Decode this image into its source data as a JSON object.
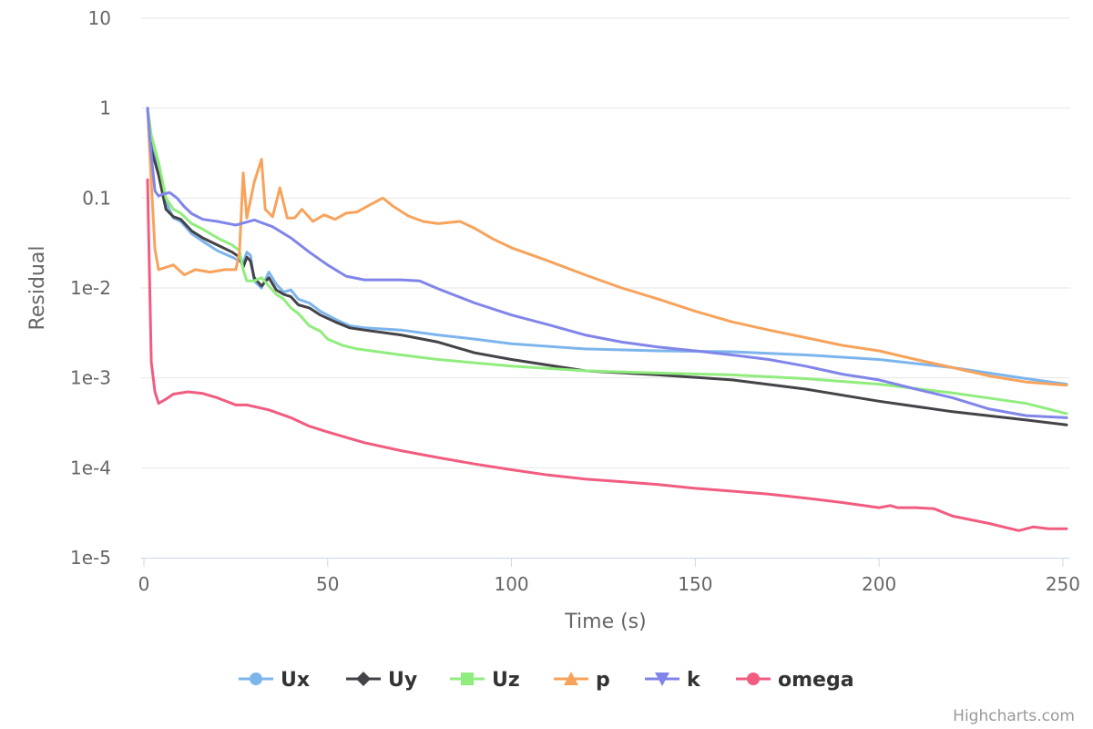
{
  "chart_data": {
    "type": "line",
    "title": "",
    "xlabel": "Time (s)",
    "ylabel": "Residual",
    "xlim": [
      0,
      252
    ],
    "ylim": [
      1e-05,
      10
    ],
    "y_scale": "log",
    "x_ticks": [
      0,
      50,
      100,
      150,
      200,
      250
    ],
    "x_tick_labels": [
      "0",
      "50",
      "100",
      "150",
      "200",
      "250"
    ],
    "y_ticks": [
      1e-05,
      0.0001,
      0.001,
      0.01,
      0.1,
      1,
      10
    ],
    "y_tick_labels": [
      "1e-5",
      "1e-4",
      "1e-3",
      "1e-2",
      "0.1",
      "1",
      "10"
    ],
    "grid": true,
    "legend_position": "bottom-center",
    "credits": "Highcharts.com",
    "series": [
      {
        "name": "Ux",
        "color": "#7cb5ec",
        "marker": "circle",
        "points": [
          [
            1,
            1
          ],
          [
            2,
            0.4
          ],
          [
            4,
            0.2
          ],
          [
            6,
            0.09
          ],
          [
            8,
            0.06
          ],
          [
            10,
            0.055
          ],
          [
            13,
            0.04
          ],
          [
            16,
            0.033
          ],
          [
            20,
            0.026
          ],
          [
            24,
            0.022
          ],
          [
            26,
            0.02
          ],
          [
            27,
            0.019
          ],
          [
            28,
            0.025
          ],
          [
            29,
            0.023
          ],
          [
            30,
            0.012
          ],
          [
            32,
            0.01
          ],
          [
            34,
            0.015
          ],
          [
            36,
            0.011
          ],
          [
            38,
            0.009
          ],
          [
            40,
            0.0095
          ],
          [
            42,
            0.0075
          ],
          [
            45,
            0.0068
          ],
          [
            48,
            0.0055
          ],
          [
            52,
            0.0045
          ],
          [
            56,
            0.0038
          ],
          [
            60,
            0.0036
          ],
          [
            70,
            0.0034
          ],
          [
            80,
            0.003
          ],
          [
            90,
            0.0027
          ],
          [
            100,
            0.0024
          ],
          [
            120,
            0.0021
          ],
          [
            140,
            0.002
          ],
          [
            160,
            0.00195
          ],
          [
            180,
            0.0018
          ],
          [
            200,
            0.0016
          ],
          [
            220,
            0.0013
          ],
          [
            240,
            0.00098
          ],
          [
            251,
            0.00085
          ]
        ]
      },
      {
        "name": "Uy",
        "color": "#434348",
        "marker": "diamond",
        "points": [
          [
            1,
            1
          ],
          [
            2,
            0.35
          ],
          [
            4,
            0.18
          ],
          [
            6,
            0.075
          ],
          [
            8,
            0.062
          ],
          [
            10,
            0.058
          ],
          [
            13,
            0.043
          ],
          [
            16,
            0.036
          ],
          [
            20,
            0.03
          ],
          [
            24,
            0.025
          ],
          [
            26,
            0.022
          ],
          [
            27,
            0.017
          ],
          [
            28,
            0.022
          ],
          [
            29,
            0.02
          ],
          [
            30,
            0.013
          ],
          [
            32,
            0.0105
          ],
          [
            34,
            0.013
          ],
          [
            36,
            0.0095
          ],
          [
            38,
            0.0085
          ],
          [
            40,
            0.008
          ],
          [
            42,
            0.0065
          ],
          [
            45,
            0.006
          ],
          [
            48,
            0.005
          ],
          [
            52,
            0.0042
          ],
          [
            56,
            0.0036
          ],
          [
            60,
            0.0034
          ],
          [
            70,
            0.003
          ],
          [
            80,
            0.0025
          ],
          [
            90,
            0.0019
          ],
          [
            100,
            0.0016
          ],
          [
            120,
            0.0012
          ],
          [
            140,
            0.00108
          ],
          [
            160,
            0.00095
          ],
          [
            180,
            0.00075
          ],
          [
            200,
            0.00055
          ],
          [
            220,
            0.00042
          ],
          [
            240,
            0.00034
          ],
          [
            251,
            0.0003
          ]
        ]
      },
      {
        "name": "Uz",
        "color": "#90ed7d",
        "marker": "square",
        "points": [
          [
            1,
            1
          ],
          [
            2,
            0.5
          ],
          [
            4,
            0.25
          ],
          [
            6,
            0.1
          ],
          [
            8,
            0.075
          ],
          [
            10,
            0.068
          ],
          [
            13,
            0.052
          ],
          [
            16,
            0.045
          ],
          [
            20,
            0.036
          ],
          [
            24,
            0.03
          ],
          [
            26,
            0.026
          ],
          [
            27,
            0.016
          ],
          [
            28,
            0.012
          ],
          [
            30,
            0.012
          ],
          [
            32,
            0.013
          ],
          [
            34,
            0.0105
          ],
          [
            36,
            0.0085
          ],
          [
            38,
            0.0075
          ],
          [
            40,
            0.006
          ],
          [
            42,
            0.0052
          ],
          [
            45,
            0.0038
          ],
          [
            48,
            0.0033
          ],
          [
            50,
            0.0027
          ],
          [
            54,
            0.0023
          ],
          [
            58,
            0.0021
          ],
          [
            70,
            0.0018
          ],
          [
            80,
            0.0016
          ],
          [
            100,
            0.00135
          ],
          [
            120,
            0.0012
          ],
          [
            140,
            0.00113
          ],
          [
            160,
            0.00108
          ],
          [
            180,
            0.00098
          ],
          [
            200,
            0.00085
          ],
          [
            220,
            0.00068
          ],
          [
            240,
            0.00052
          ],
          [
            251,
            0.0004
          ]
        ]
      },
      {
        "name": "p",
        "color": "#f7a35c",
        "marker": "triangle",
        "points": [
          [
            1,
            1
          ],
          [
            2,
            0.15
          ],
          [
            3,
            0.027
          ],
          [
            4,
            0.016
          ],
          [
            6,
            0.017
          ],
          [
            8,
            0.018
          ],
          [
            11,
            0.014
          ],
          [
            14,
            0.016
          ],
          [
            18,
            0.015
          ],
          [
            22,
            0.016
          ],
          [
            25,
            0.016
          ],
          [
            26,
            0.025
          ],
          [
            27,
            0.19
          ],
          [
            28,
            0.06
          ],
          [
            30,
            0.15
          ],
          [
            32,
            0.27
          ],
          [
            33,
            0.075
          ],
          [
            35,
            0.062
          ],
          [
            37,
            0.13
          ],
          [
            39,
            0.06
          ],
          [
            41,
            0.06
          ],
          [
            43,
            0.075
          ],
          [
            46,
            0.055
          ],
          [
            49,
            0.065
          ],
          [
            52,
            0.058
          ],
          [
            55,
            0.068
          ],
          [
            58,
            0.07
          ],
          [
            61,
            0.082
          ],
          [
            65,
            0.1
          ],
          [
            68,
            0.08
          ],
          [
            72,
            0.063
          ],
          [
            76,
            0.055
          ],
          [
            80,
            0.052
          ],
          [
            86,
            0.055
          ],
          [
            90,
            0.046
          ],
          [
            95,
            0.035
          ],
          [
            100,
            0.028
          ],
          [
            110,
            0.02
          ],
          [
            120,
            0.014
          ],
          [
            130,
            0.01
          ],
          [
            140,
            0.0075
          ],
          [
            150,
            0.0055
          ],
          [
            160,
            0.0042
          ],
          [
            170,
            0.0034
          ],
          [
            180,
            0.0028
          ],
          [
            190,
            0.0023
          ],
          [
            200,
            0.002
          ],
          [
            210,
            0.0016
          ],
          [
            220,
            0.0013
          ],
          [
            230,
            0.00105
          ],
          [
            240,
            0.0009
          ],
          [
            251,
            0.00083
          ]
        ]
      },
      {
        "name": "k",
        "color": "#8085e9",
        "marker": "triangle-down",
        "points": [
          [
            1,
            1
          ],
          [
            2,
            0.3
          ],
          [
            3,
            0.12
          ],
          [
            4,
            0.105
          ],
          [
            5,
            0.11
          ],
          [
            7,
            0.115
          ],
          [
            9,
            0.1
          ],
          [
            11,
            0.08
          ],
          [
            13,
            0.067
          ],
          [
            16,
            0.058
          ],
          [
            20,
            0.055
          ],
          [
            25,
            0.05
          ],
          [
            30,
            0.057
          ],
          [
            35,
            0.048
          ],
          [
            40,
            0.036
          ],
          [
            45,
            0.025
          ],
          [
            50,
            0.018
          ],
          [
            55,
            0.0135
          ],
          [
            60,
            0.0123
          ],
          [
            70,
            0.0123
          ],
          [
            75,
            0.012
          ],
          [
            80,
            0.0098
          ],
          [
            90,
            0.0068
          ],
          [
            100,
            0.005
          ],
          [
            110,
            0.0039
          ],
          [
            120,
            0.003
          ],
          [
            130,
            0.0025
          ],
          [
            140,
            0.0022
          ],
          [
            150,
            0.002
          ],
          [
            160,
            0.0018
          ],
          [
            170,
            0.0016
          ],
          [
            180,
            0.00135
          ],
          [
            190,
            0.0011
          ],
          [
            200,
            0.00095
          ],
          [
            210,
            0.00075
          ],
          [
            220,
            0.0006
          ],
          [
            230,
            0.00045
          ],
          [
            240,
            0.00038
          ],
          [
            251,
            0.00036
          ]
        ]
      },
      {
        "name": "omega",
        "color": "#f15c80",
        "marker": "circle",
        "points": [
          [
            1,
            0.16
          ],
          [
            2,
            0.0015
          ],
          [
            3,
            0.0007
          ],
          [
            4,
            0.00052
          ],
          [
            6,
            0.00058
          ],
          [
            8,
            0.00066
          ],
          [
            12,
            0.0007
          ],
          [
            16,
            0.00067
          ],
          [
            20,
            0.0006
          ],
          [
            25,
            0.0005
          ],
          [
            28,
            0.0005
          ],
          [
            34,
            0.00044
          ],
          [
            40,
            0.00036
          ],
          [
            45,
            0.00029
          ],
          [
            50,
            0.00025
          ],
          [
            60,
            0.00019
          ],
          [
            70,
            0.000155
          ],
          [
            80,
            0.00013
          ],
          [
            90,
            0.00011
          ],
          [
            100,
            9.5e-05
          ],
          [
            110,
            8.3e-05
          ],
          [
            120,
            7.5e-05
          ],
          [
            130,
            7e-05
          ],
          [
            140,
            6.5e-05
          ],
          [
            150,
            5.9e-05
          ],
          [
            160,
            5.5e-05
          ],
          [
            170,
            5.1e-05
          ],
          [
            180,
            4.6e-05
          ],
          [
            190,
            4.1e-05
          ],
          [
            200,
            3.6e-05
          ],
          [
            203,
            3.8e-05
          ],
          [
            205,
            3.6e-05
          ],
          [
            210,
            3.6e-05
          ],
          [
            215,
            3.5e-05
          ],
          [
            220,
            2.9e-05
          ],
          [
            230,
            2.4e-05
          ],
          [
            238,
            2e-05
          ],
          [
            242,
            2.2e-05
          ],
          [
            246,
            2.1e-05
          ],
          [
            251,
            2.1e-05
          ]
        ]
      }
    ]
  }
}
